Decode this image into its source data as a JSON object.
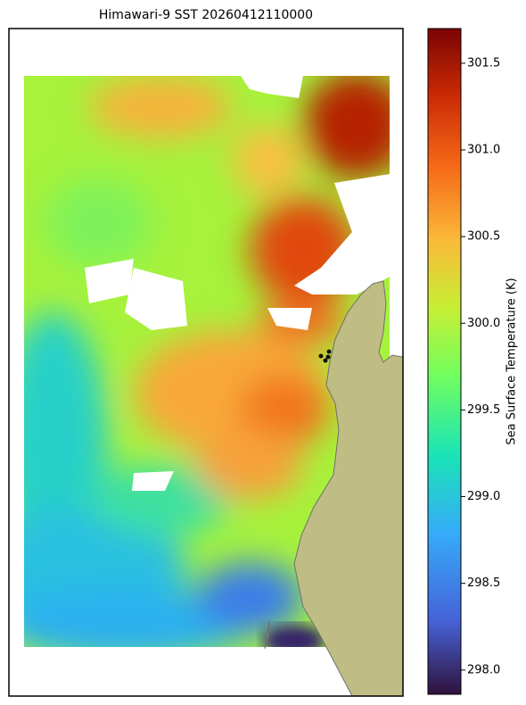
{
  "title": "Himawari-9 SST 20260412110000",
  "colorbar": {
    "label": "Sea Surface Temperature (K)",
    "lim": [
      297.86,
      301.7
    ],
    "ticks": [
      {
        "value": 298,
        "label": "298.0"
      },
      298.5,
      {
        "value": 299,
        "label": "299.0"
      },
      299.5,
      {
        "value": 300,
        "label": "300.0"
      },
      300.5,
      {
        "value": 301,
        "label": "301.0"
      },
      301.5
    ]
  }
}
